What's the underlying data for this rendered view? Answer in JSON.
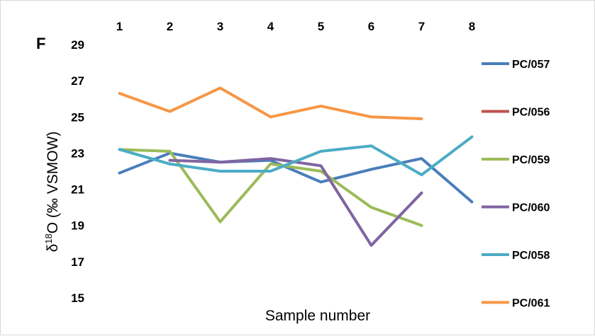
{
  "chart_data": {
    "type": "line",
    "panel_label": "F",
    "title": "",
    "xlabel": "Sample number",
    "ylabel": "δ18O (‰ VSMOW)",
    "categories": [
      "1",
      "2",
      "3",
      "4",
      "5",
      "6",
      "7",
      "8"
    ],
    "xaxis_position": "top",
    "ylim": [
      15,
      29
    ],
    "yticks": [
      "15",
      "17",
      "19",
      "21",
      "23",
      "25",
      "27",
      "29"
    ],
    "grid": false,
    "legend_position": "right",
    "series": [
      {
        "name": "PC/057",
        "color": "#4a7ebb",
        "values": [
          21.9,
          23.0,
          22.5,
          22.6,
          21.4,
          22.1,
          22.7,
          20.3
        ]
      },
      {
        "name": "PC/056",
        "color": "#c0504d",
        "values": [
          null,
          null,
          null,
          null,
          null,
          null,
          null,
          null
        ]
      },
      {
        "name": "PC/059",
        "color": "#9bbb59",
        "values": [
          23.2,
          23.1,
          19.2,
          22.4,
          22.0,
          20.0,
          19.0,
          null
        ]
      },
      {
        "name": "PC/060",
        "color": "#8064a2",
        "values": [
          null,
          22.6,
          22.5,
          22.7,
          22.3,
          17.9,
          20.8,
          null
        ]
      },
      {
        "name": "PC/058",
        "color": "#4bacc6",
        "values": [
          23.2,
          22.4,
          22.0,
          22.0,
          23.1,
          23.4,
          21.8,
          23.9
        ]
      },
      {
        "name": "PC/061",
        "color": "#f79646",
        "values": [
          26.3,
          25.3,
          26.6,
          25.0,
          25.6,
          25.0,
          24.9,
          null
        ]
      }
    ]
  }
}
